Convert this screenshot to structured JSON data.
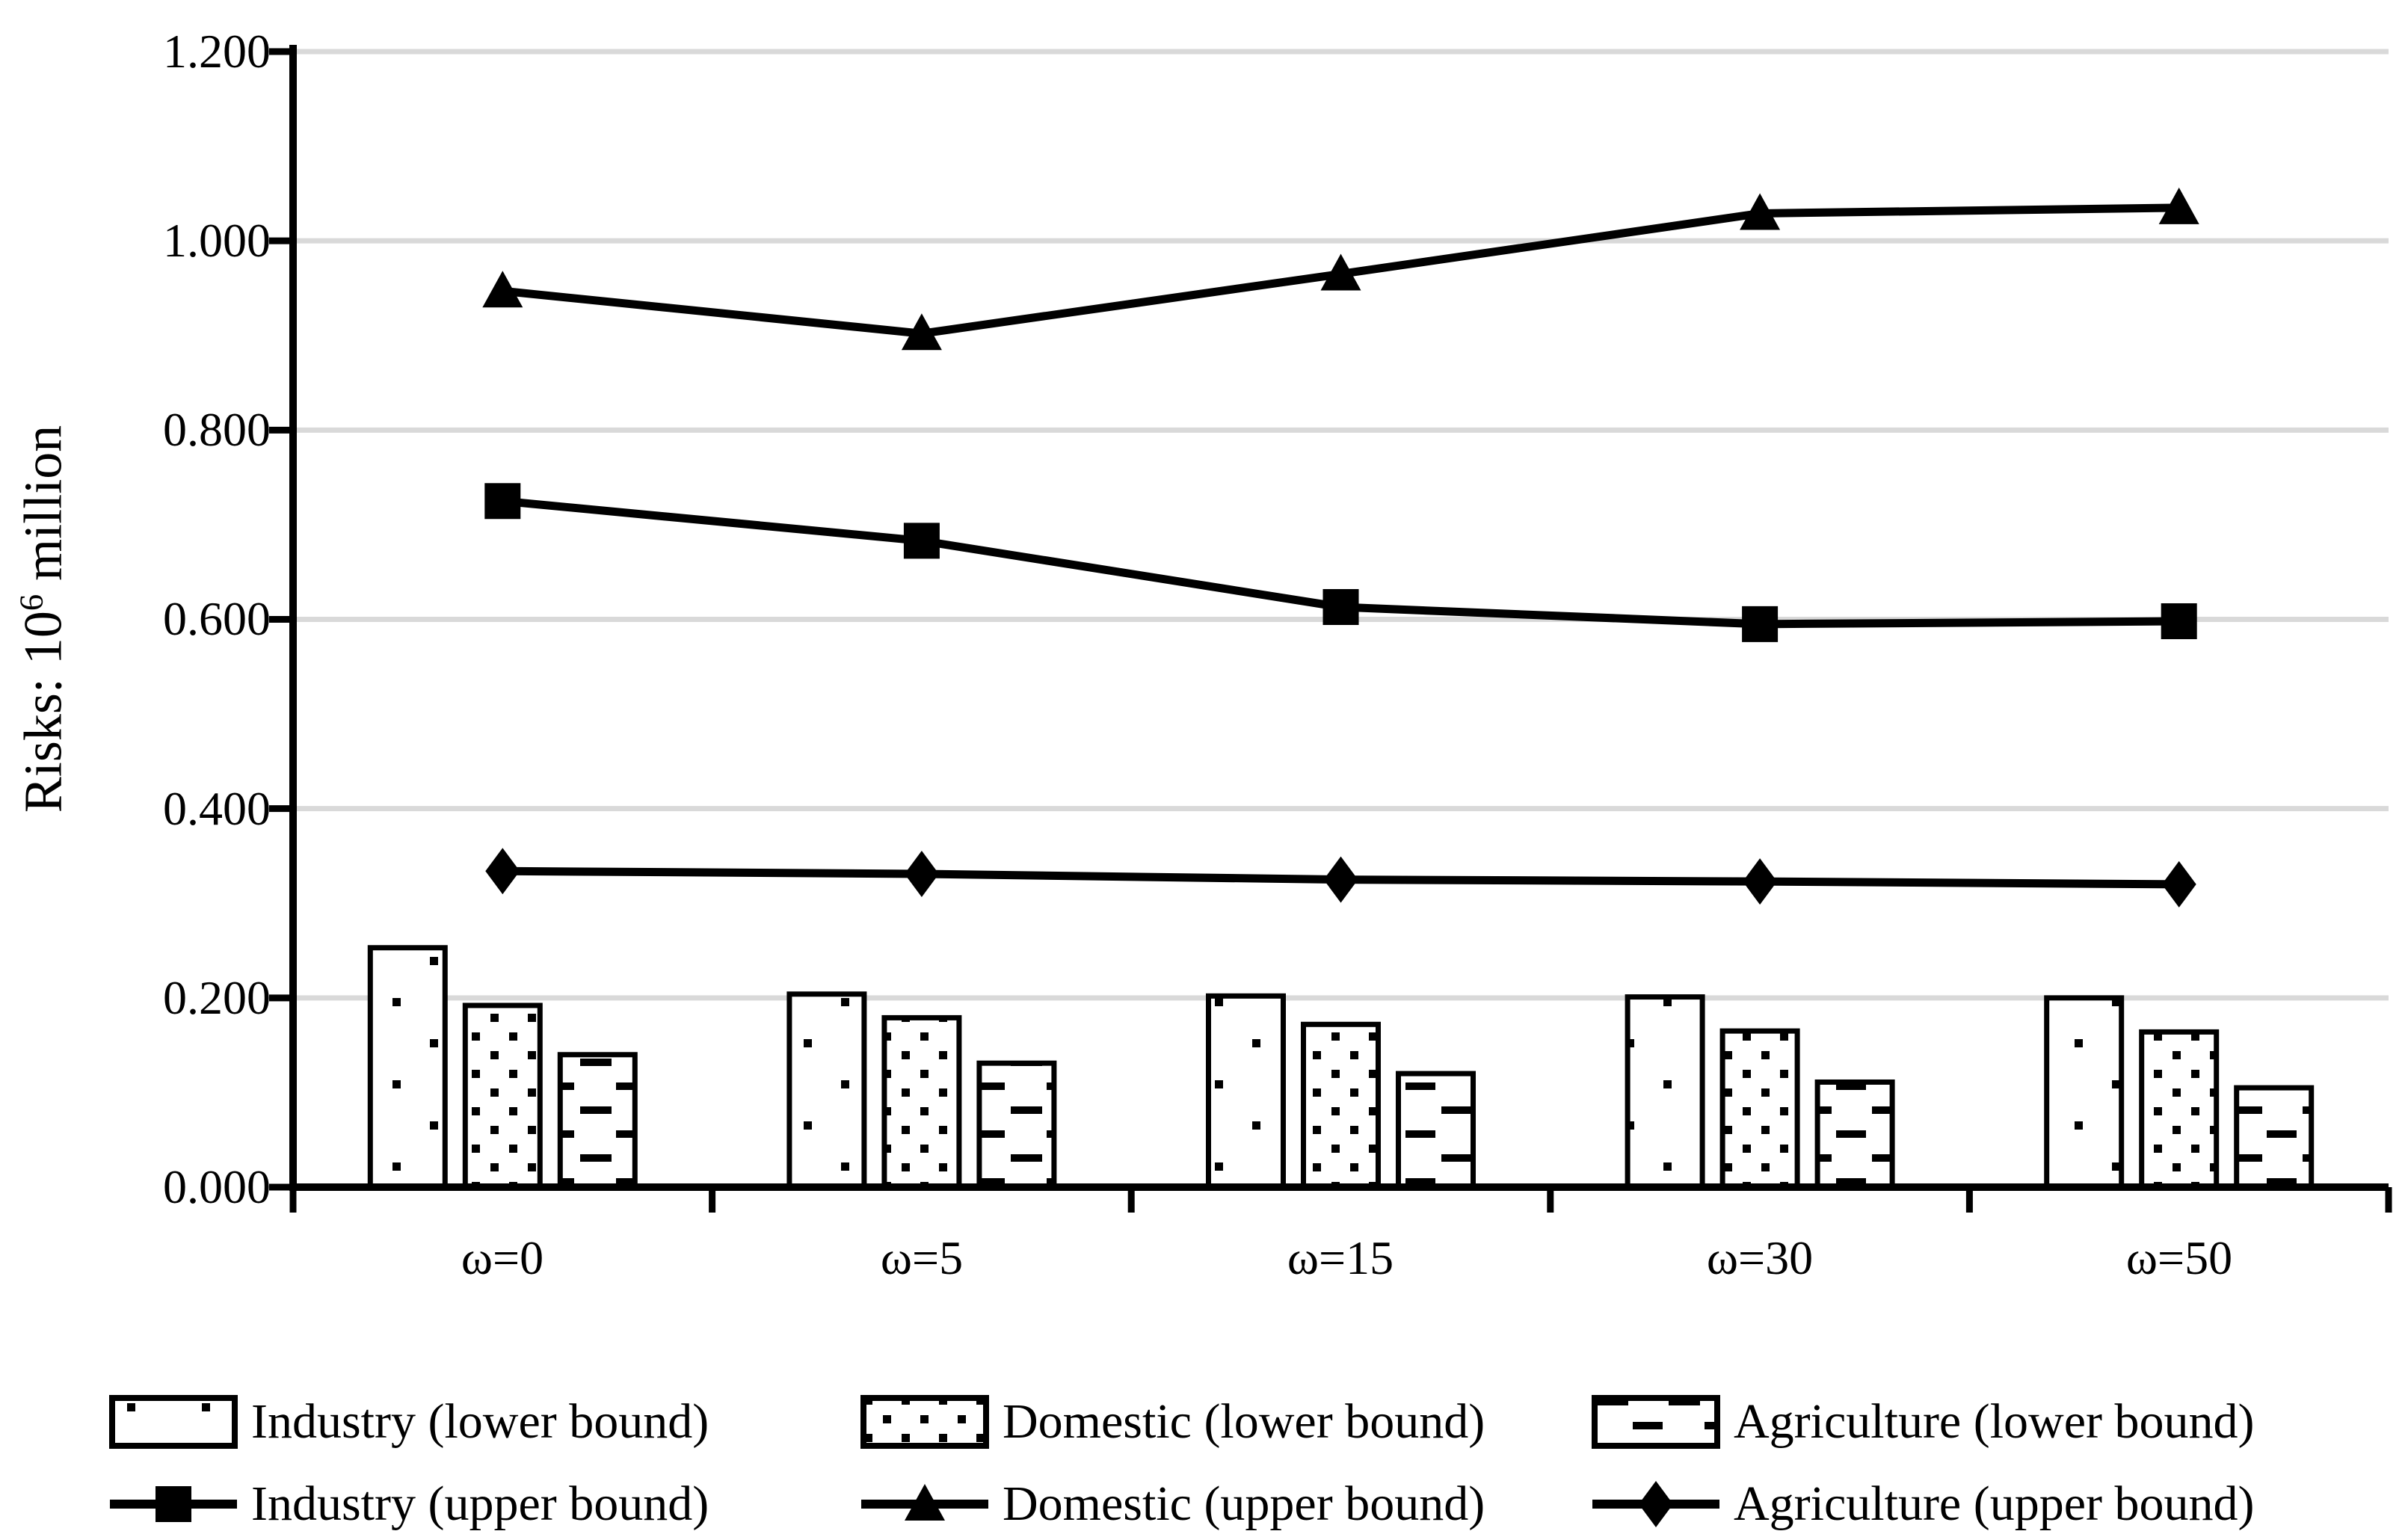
{
  "chart_data": {
    "type": "combo-bar-line",
    "title": "",
    "xlabel": "",
    "ylabel_prefix": "Risks: 10",
    "ylabel_sup": "6",
    "ylabel_suffix": " million",
    "categories": [
      "ω=0",
      "ω=5",
      "ω=15",
      "ω=30",
      "ω=50"
    ],
    "bar_series": [
      {
        "name": "Industry (lower bound)",
        "pattern": "dots-sparse",
        "values": [
          0.253,
          0.204,
          0.202,
          0.201,
          0.2
        ]
      },
      {
        "name": "Domestic (lower bound)",
        "pattern": "dots-dense",
        "values": [
          0.192,
          0.179,
          0.172,
          0.165,
          0.164
        ]
      },
      {
        "name": "Agriculture (lower bound)",
        "pattern": "dashes-horizontal",
        "values": [
          0.14,
          0.131,
          0.12,
          0.111,
          0.105
        ]
      }
    ],
    "line_series": [
      {
        "name": "Industry (upper bound)",
        "marker": "square",
        "values": [
          0.725,
          0.683,
          0.613,
          0.595,
          0.598
        ]
      },
      {
        "name": "Domestic (upper bound)",
        "marker": "triangle",
        "values": [
          0.947,
          0.902,
          0.965,
          1.029,
          1.035
        ]
      },
      {
        "name": "Agriculture (upper bound)",
        "marker": "diamond",
        "values": [
          0.334,
          0.331,
          0.325,
          0.323,
          0.32
        ]
      }
    ],
    "y_ticks": [
      "0.000",
      "0.200",
      "0.400",
      "0.600",
      "0.800",
      "1.000",
      "1.200"
    ],
    "ylim": [
      0,
      1.2
    ],
    "y_tick_step": 0.2,
    "grid": true,
    "legend_position": "bottom",
    "colors": {
      "series": "#000000",
      "gridline": "#d9d9d9",
      "background": "#ffffff"
    }
  }
}
